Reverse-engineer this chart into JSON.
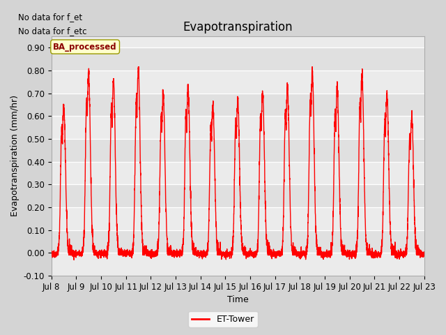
{
  "title": "Evapotranspiration",
  "ylabel": "Evapotranspiration (mm/hr)",
  "xlabel": "Time",
  "ylim": [
    -0.1,
    0.95
  ],
  "yticks": [
    -0.1,
    0.0,
    0.1,
    0.2,
    0.3,
    0.4,
    0.5,
    0.6,
    0.7,
    0.8,
    0.9
  ],
  "line_color": "red",
  "line_width": 1.0,
  "fig_bg_color": "#d4d4d4",
  "plot_bg_color": "#ebebeb",
  "legend_label": "ET-Tower",
  "legend_box_color": "#ffffcc",
  "legend_box_border": "#999900",
  "watermark_text1": "No data for f_et",
  "watermark_text2": "No data for f_etc",
  "watermark_fontsize": 8.5,
  "ba_label": "BA_processed",
  "ba_fontsize": 8.5,
  "title_fontsize": 12,
  "axis_label_fontsize": 9,
  "tick_label_fontsize": 8.5,
  "num_days": 15,
  "xtick_labels": [
    "Jul 8",
    "Jul 9",
    "Jul 10",
    "Jul 11",
    "Jul 12",
    "Jul 13",
    "Jul 14",
    "Jul 15",
    "Jul 16",
    "Jul 17",
    "Jul 18",
    "Jul 19",
    "Jul 20",
    "Jul 21",
    "Jul 22",
    "Jul 23"
  ],
  "day_peaks": [
    0.64,
    0.79,
    0.76,
    0.8,
    0.7,
    0.73,
    0.65,
    0.67,
    0.71,
    0.72,
    0.8,
    0.72,
    0.78,
    0.7,
    0.6
  ],
  "grid_colors": [
    "#e8e8e8",
    "#d8d8d8"
  ]
}
